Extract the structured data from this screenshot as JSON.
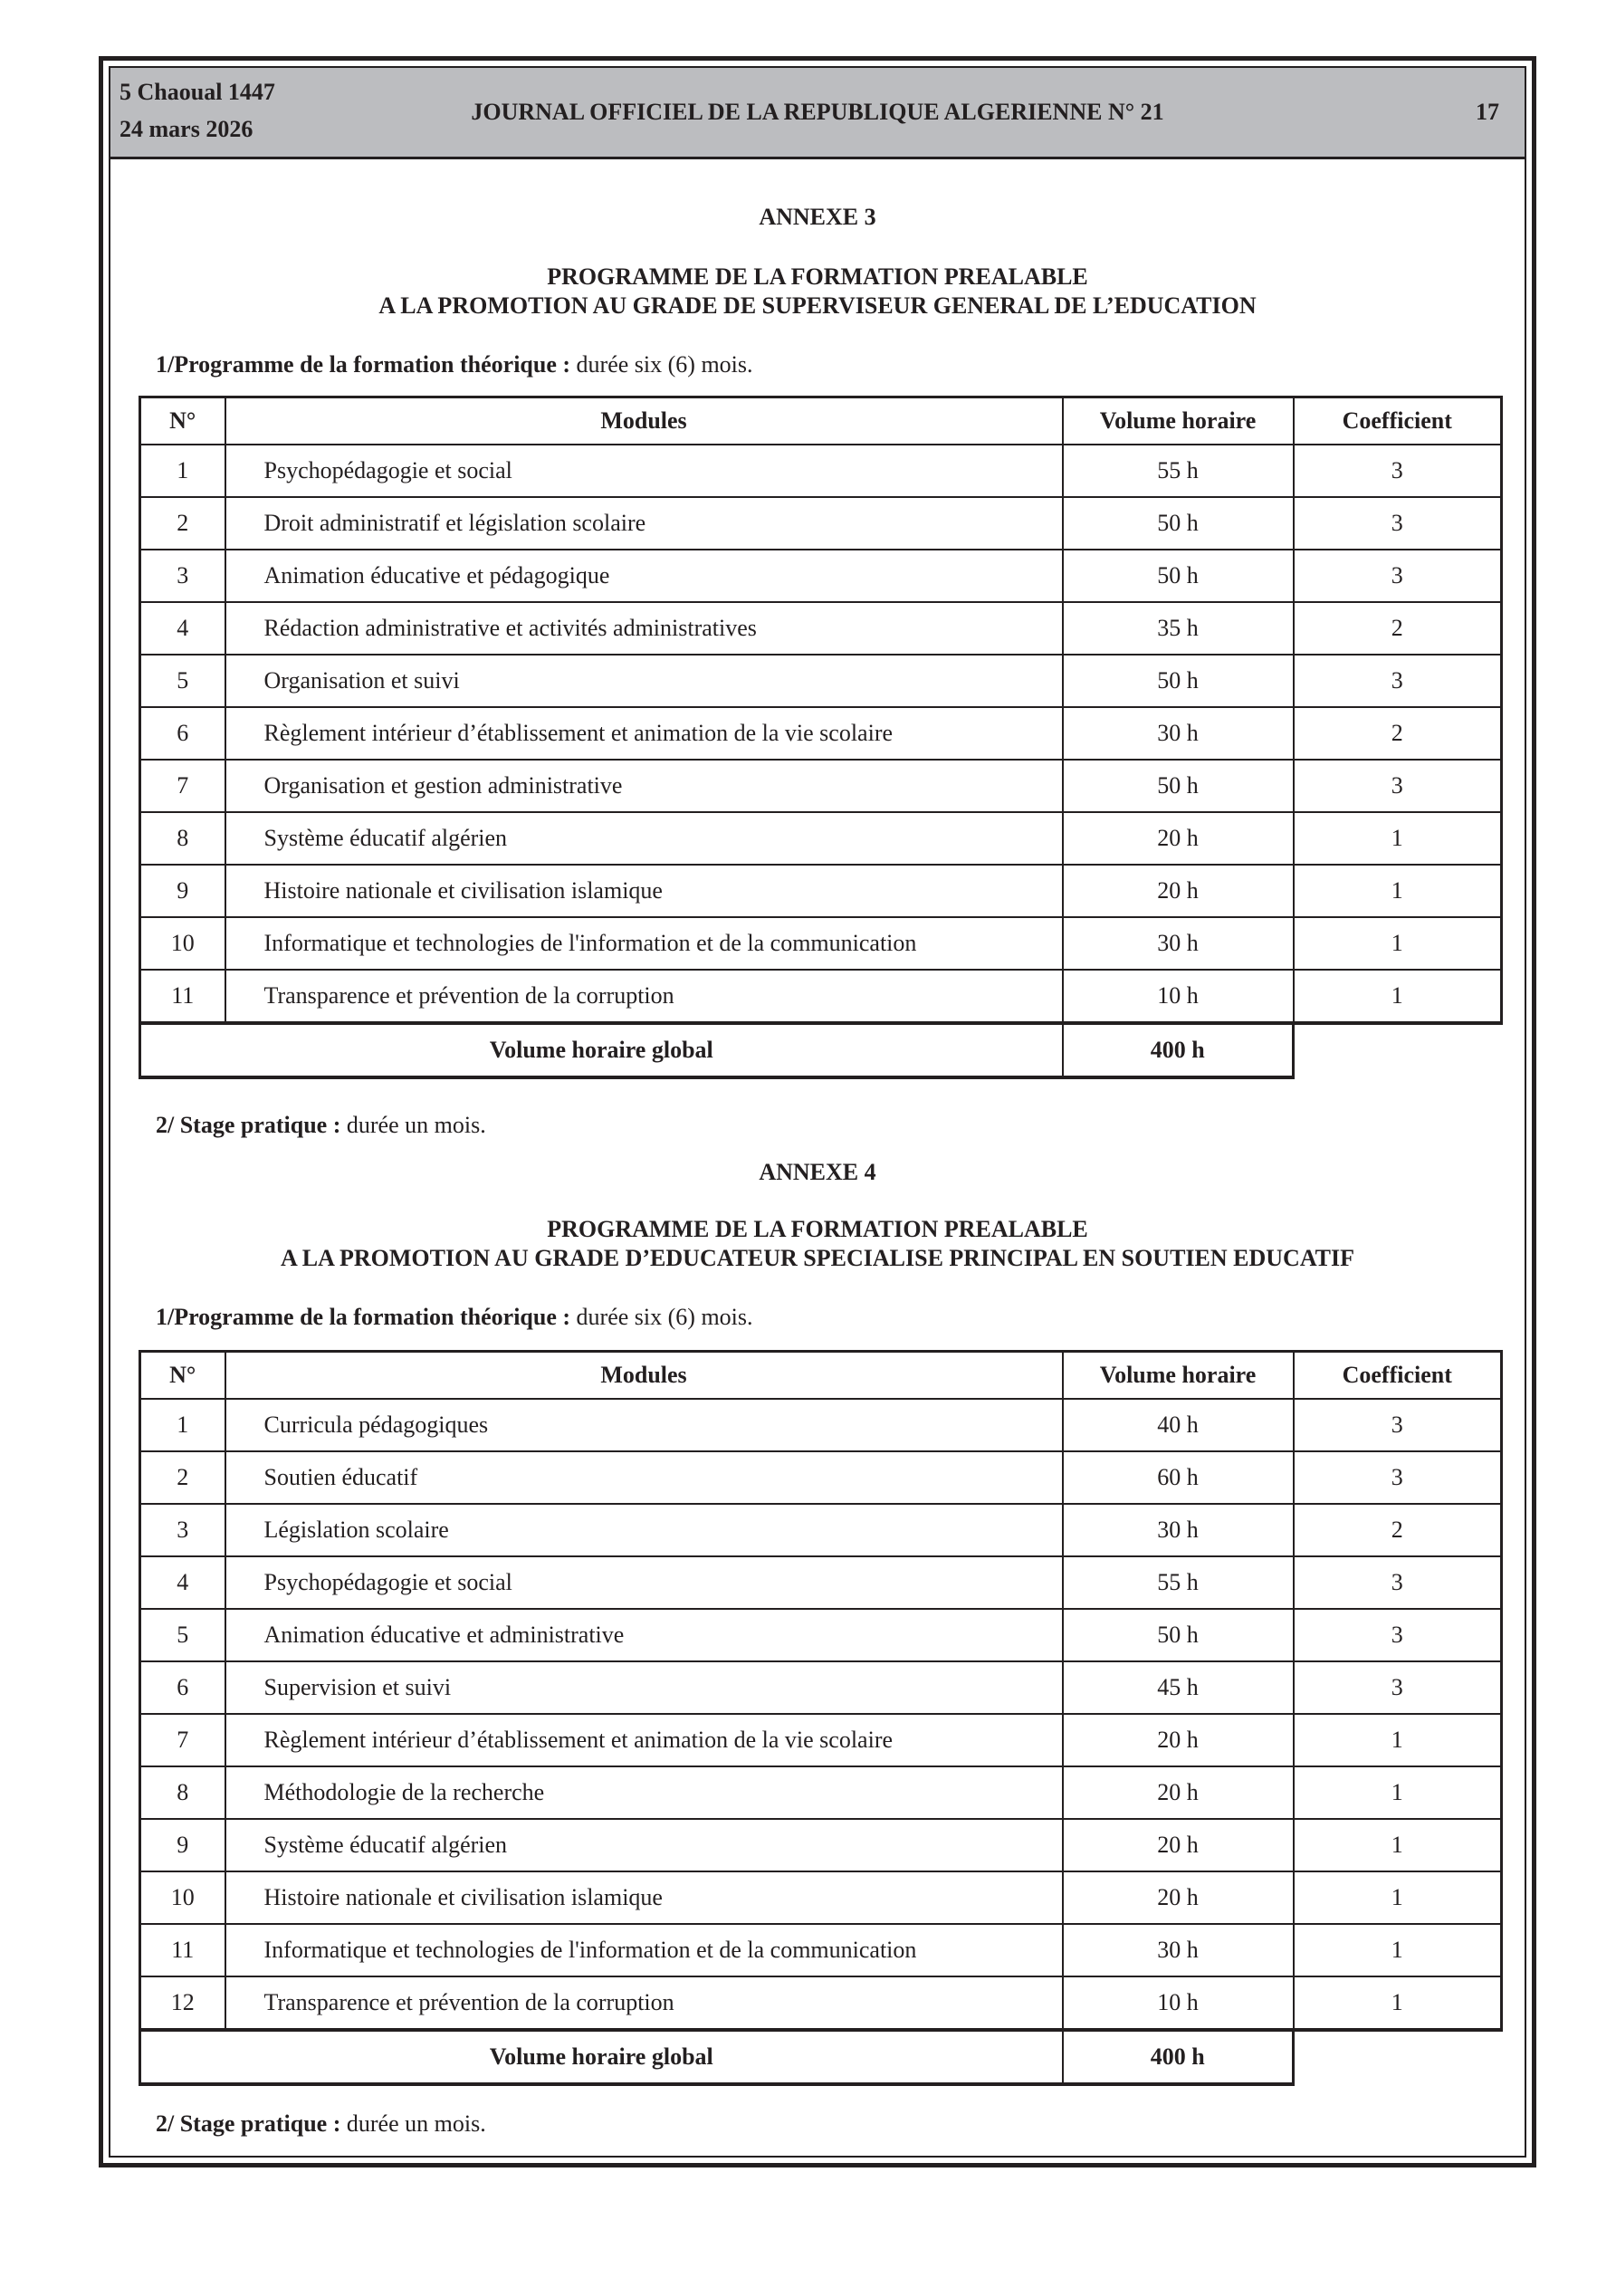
{
  "header": {
    "hijri_date": "5 Chaoual 1447",
    "date": "24 mars 2026",
    "journal_title": "JOURNAL OFFICIEL DE LA REPUBLIQUE ALGERIENNE N° 21",
    "page_number": "17"
  },
  "columns": {
    "n": "N°",
    "modules": "Modules",
    "volume": "Volume horaire",
    "coef": "Coefficient"
  },
  "annexe3": {
    "title": "ANNEXE 3",
    "subtitle_1": "PROGRAMME DE LA FORMATION PREALABLE",
    "subtitle_2": "A LA PROMOTION AU GRADE DE SUPERVISEUR GENERAL DE L’EDUCATION",
    "theory_label": "1/Programme de la formation théorique :",
    "theory_duration": " durée six (6) mois.",
    "rows": [
      {
        "n": "1",
        "module": "Psychopédagogie et social",
        "volume": "55 h",
        "coef": "3"
      },
      {
        "n": "2",
        "module": "Droit administratif et législation scolaire",
        "volume": "50 h",
        "coef": "3"
      },
      {
        "n": "3",
        "module": "Animation éducative et pédagogique",
        "volume": "50 h",
        "coef": "3"
      },
      {
        "n": "4",
        "module": "Rédaction administrative et activités administratives",
        "volume": "35 h",
        "coef": "2"
      },
      {
        "n": "5",
        "module": "Organisation et suivi",
        "volume": "50 h",
        "coef": "3"
      },
      {
        "n": "6",
        "module": "Règlement intérieur d’établissement et animation de la vie scolaire",
        "volume": "30 h",
        "coef": "2"
      },
      {
        "n": "7",
        "module": "Organisation et gestion administrative",
        "volume": "50 h",
        "coef": "3"
      },
      {
        "n": "8",
        "module": "Système éducatif algérien",
        "volume": "20 h",
        "coef": "1"
      },
      {
        "n": "9",
        "module": "Histoire nationale et civilisation islamique",
        "volume": "20 h",
        "coef": "1"
      },
      {
        "n": "10",
        "module": "Informatique et technologies de l'information et de la communication",
        "volume": "30 h",
        "coef": "1"
      },
      {
        "n": "11",
        "module": "Transparence et prévention de la corruption",
        "volume": "10 h",
        "coef": "1"
      }
    ],
    "total_label": "Volume horaire global",
    "total_value": "400 h",
    "stage_label": "2/ Stage pratique :",
    "stage_duration": " durée un mois."
  },
  "annexe4": {
    "title": "ANNEXE 4",
    "subtitle_1": "PROGRAMME DE LA FORMATION PREALABLE",
    "subtitle_2": "A LA PROMOTION AU GRADE D’EDUCATEUR SPECIALISE PRINCIPAL EN SOUTIEN EDUCATIF",
    "theory_label": "1/Programme de la formation théorique :",
    "theory_duration": " durée six (6) mois.",
    "rows": [
      {
        "n": "1",
        "module": "Curricula pédagogiques",
        "volume": "40 h",
        "coef": "3"
      },
      {
        "n": "2",
        "module": "Soutien éducatif",
        "volume": "60 h",
        "coef": "3"
      },
      {
        "n": "3",
        "module": "Législation scolaire",
        "volume": "30 h",
        "coef": "2"
      },
      {
        "n": "4",
        "module": "Psychopédagogie et social",
        "volume": "55 h",
        "coef": "3"
      },
      {
        "n": "5",
        "module": "Animation éducative et administrative",
        "volume": "50 h",
        "coef": "3"
      },
      {
        "n": "6",
        "module": "Supervision et suivi",
        "volume": "45 h",
        "coef": "3"
      },
      {
        "n": "7",
        "module": "Règlement intérieur d’établissement et animation de la vie scolaire",
        "volume": "20 h",
        "coef": "1"
      },
      {
        "n": "8",
        "module": "Méthodologie de la recherche",
        "volume": "20 h",
        "coef": "1"
      },
      {
        "n": "9",
        "module": "Système éducatif algérien",
        "volume": "20 h",
        "coef": "1"
      },
      {
        "n": "10",
        "module": "Histoire nationale et civilisation islamique",
        "volume": "20 h",
        "coef": "1"
      },
      {
        "n": "11",
        "module": "Informatique et technologies de l'information et de la communication",
        "volume": "30 h",
        "coef": "1"
      },
      {
        "n": "12",
        "module": "Transparence et prévention de la corruption",
        "volume": "10 h",
        "coef": "1"
      }
    ],
    "total_label": "Volume horaire global",
    "total_value": "400 h",
    "stage_label": "2/ Stage pratique :",
    "stage_duration": " durée un mois."
  }
}
